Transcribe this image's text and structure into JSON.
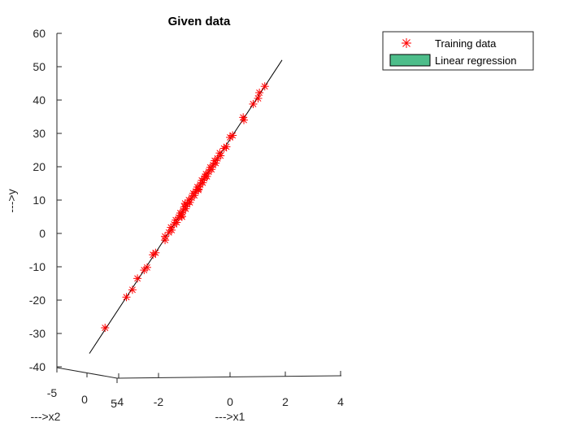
{
  "chart_data": {
    "type": "scatter",
    "title": "Given data",
    "xlabel": "--->x1",
    "ylabel": "--->y",
    "zlabel": "--->x2",
    "ylim": [
      -40,
      60
    ],
    "yticks": [
      "-40",
      "-30",
      "-20",
      "-10",
      "0",
      "10",
      "20",
      "30",
      "40",
      "50",
      "60"
    ],
    "x1ticks": [
      "-4",
      "-2",
      "0",
      "2",
      "4"
    ],
    "x2ticks": [
      "-5",
      "0",
      "5"
    ],
    "grid": false,
    "legend_position": "top-right",
    "legend": [
      {
        "label": "Training data",
        "marker": "asterisk",
        "color": "#ff0000"
      },
      {
        "label": "Linear regression",
        "marker": "patch",
        "color": "#4dbd8a"
      }
    ],
    "series": [
      {
        "name": "Training data",
        "color": "#ff0000",
        "marker": "asterisk",
        "y": [
          -28.3,
          -19.1,
          -16.9,
          -13.5,
          -11.0,
          -10.2,
          -6.4,
          -5.8,
          -2.0,
          -0.9,
          0.3,
          1.0,
          1.8,
          2.7,
          3.3,
          4.0,
          4.8,
          5.5,
          6.1,
          6.8,
          7.4,
          8.0,
          8.7,
          9.3,
          10.0,
          10.7,
          11.4,
          12.0,
          12.6,
          13.3,
          13.9,
          14.6,
          15.2,
          15.9,
          16.5,
          17.1,
          17.8,
          18.5,
          19.2,
          19.8,
          20.5,
          21.1,
          21.8,
          22.5,
          23.3,
          24.1,
          25.5,
          26.0,
          28.8,
          29.4,
          34.0,
          34.8,
          38.8,
          40.5,
          42.2,
          44.1,
          5.0,
          9.0,
          13.0,
          17.0
        ],
        "proj_x1": [
          -4.15,
          -3.82,
          -3.62,
          -3.28,
          -3.12,
          -3.0,
          -2.71,
          -2.62,
          -2.38,
          -2.27,
          -2.14,
          -2.08,
          -2.0,
          -1.95,
          -1.88,
          -1.8,
          -1.74,
          -1.66,
          -1.61,
          -1.55,
          -1.49,
          -1.43,
          -1.38,
          -1.33,
          -1.26,
          -1.2,
          -1.15,
          -1.09,
          -1.04,
          -0.98,
          -0.93,
          -0.88,
          -0.82,
          -0.76,
          -0.71,
          -0.65,
          -0.6,
          -0.54,
          -0.48,
          -0.43,
          -0.38,
          -0.32,
          -0.26,
          -0.21,
          -0.14,
          -0.08,
          0.03,
          0.08,
          0.28,
          0.33,
          0.68,
          0.74,
          1.05,
          1.15,
          1.28,
          1.42,
          -1.67,
          -1.24,
          -0.9,
          -0.55
        ],
        "proj_off": [
          0.0,
          0.0,
          0.0,
          0.0,
          0.0,
          0.0,
          0.0,
          0.0,
          0.0,
          0.0,
          0.0,
          0.0,
          0.0,
          0.0,
          0.0,
          0.0,
          0.0,
          0.0,
          0.0,
          0.0,
          0.0,
          0.0,
          0.0,
          0.0,
          0.0,
          0.0,
          0.0,
          0.0,
          0.0,
          0.0,
          0.0,
          0.0,
          0.0,
          0.0,
          0.0,
          0.0,
          0.0,
          0.0,
          0.0,
          0.0,
          0.0,
          0.0,
          0.0,
          0.0,
          0.0,
          0.0,
          0.0,
          0.0,
          0.0,
          0.0,
          0.0,
          0.0,
          0.0,
          0.0,
          0.0,
          0.0,
          0.2,
          -0.2,
          0.2,
          -0.2
        ]
      },
      {
        "name": "Linear regression",
        "color": "#000000",
        "type": "line",
        "y": [
          -36.0,
          52.0
        ]
      }
    ]
  }
}
